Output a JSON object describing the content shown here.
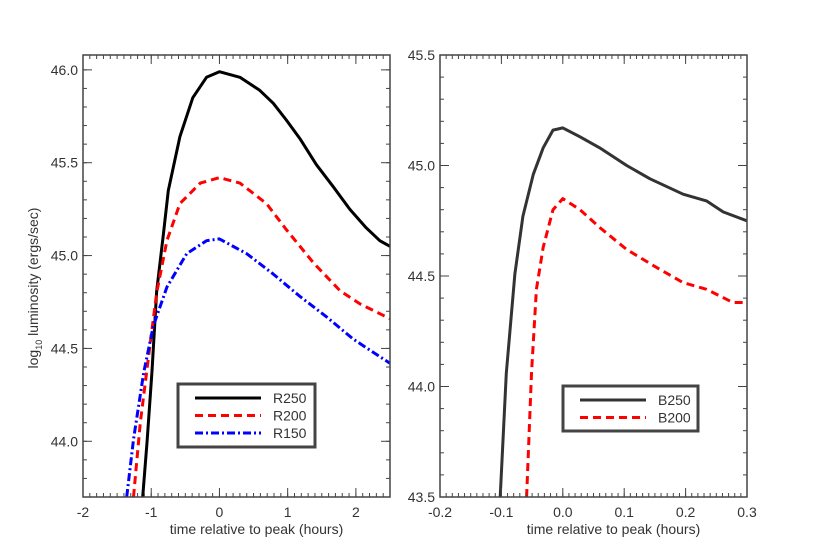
{
  "chart_data": [
    {
      "type": "line",
      "xlabel": "time relative to peak (hours)",
      "ylabel_prefix": "log",
      "ylabel_sub": "10",
      "ylabel_rest": " luminosity (ergs/sec)",
      "xlim": [
        -2,
        2.5
      ],
      "ylim": [
        43.7,
        46.08
      ],
      "xticks": [
        -2,
        -1,
        0,
        1,
        2
      ],
      "xtick_labels": [
        "-2",
        "-1",
        "0",
        "1",
        "2"
      ],
      "yticks": [
        44.0,
        44.5,
        45.0,
        45.5,
        46.0
      ],
      "ytick_labels": [
        "44.0",
        "44.5",
        "45.0",
        "45.5",
        "46.0"
      ],
      "x_minor_step": 0.1,
      "y_minor_step": 0.1,
      "grid": false,
      "legend_position": "lower-center",
      "series": [
        {
          "name": "R250",
          "color": "#000000",
          "style": "solid",
          "x": [
            -1.125,
            -1.06,
            -0.99,
            -0.92,
            -0.82,
            -0.75,
            -0.58,
            -0.39,
            -0.19,
            0,
            0.3,
            0.59,
            0.79,
            0.98,
            1.18,
            1.42,
            1.67,
            1.91,
            2.15,
            2.35,
            2.5
          ],
          "y": [
            43.7,
            44.0,
            44.37,
            44.81,
            45.12,
            45.35,
            45.64,
            45.85,
            45.96,
            45.99,
            45.96,
            45.89,
            45.82,
            45.73,
            45.63,
            45.49,
            45.37,
            45.25,
            45.15,
            45.08,
            45.05
          ]
        },
        {
          "name": "R200",
          "color": "#ff0000",
          "style": "dashed",
          "x": [
            -1.26,
            -1.16,
            -1.01,
            -0.92,
            -0.77,
            -0.58,
            -0.28,
            0,
            0.3,
            0.69,
            0.98,
            1.38,
            1.77,
            2.06,
            2.5
          ],
          "y": [
            43.7,
            44.1,
            44.54,
            44.8,
            45.08,
            45.28,
            45.39,
            45.42,
            45.39,
            45.28,
            45.14,
            44.96,
            44.81,
            44.74,
            44.66
          ]
        },
        {
          "name": "R150",
          "color": "#0000ff",
          "style": "dashdot",
          "x": [
            -1.36,
            -1.26,
            -1.11,
            -0.97,
            -0.77,
            -0.48,
            -0.19,
            0,
            0.4,
            0.79,
            1.18,
            1.57,
            1.96,
            2.25,
            2.5
          ],
          "y": [
            43.7,
            44.01,
            44.37,
            44.62,
            44.83,
            45.01,
            45.08,
            45.09,
            45.01,
            44.9,
            44.78,
            44.67,
            44.55,
            44.48,
            44.42
          ]
        }
      ]
    },
    {
      "type": "line",
      "xlabel": "time relative to peak (hours)",
      "xlim": [
        -0.2,
        0.3
      ],
      "ylim": [
        43.5,
        45.5
      ],
      "xticks": [
        -0.2,
        -0.1,
        0.0,
        0.1,
        0.2,
        0.3
      ],
      "xtick_labels": [
        "-0.2",
        "-0.1",
        "0.0",
        "0.1",
        "0.2",
        "0.3"
      ],
      "yticks": [
        43.5,
        44.0,
        44.5,
        45.0,
        45.5
      ],
      "ytick_labels": [
        "43.5",
        "44.0",
        "44.5",
        "45.0",
        "45.5"
      ],
      "x_minor_step": 0.01,
      "y_minor_step": 0.1,
      "grid": false,
      "legend_position": "lower-center",
      "series": [
        {
          "name": "B250",
          "color": "#333333",
          "style": "solid",
          "x": [
            -0.102,
            -0.092,
            -0.078,
            -0.065,
            -0.048,
            -0.032,
            -0.016,
            0,
            0.028,
            0.06,
            0.104,
            0.142,
            0.196,
            0.234,
            0.261,
            0.3
          ],
          "y": [
            43.5,
            44.06,
            44.51,
            44.77,
            44.96,
            45.08,
            45.16,
            45.17,
            45.13,
            45.08,
            45.0,
            44.94,
            44.87,
            44.84,
            44.79,
            44.75
          ]
        },
        {
          "name": "B200",
          "color": "#ff0000",
          "style": "dashed",
          "x": [
            -0.059,
            -0.051,
            -0.043,
            -0.032,
            -0.016,
            0,
            0.028,
            0.06,
            0.104,
            0.152,
            0.196,
            0.234,
            0.277,
            0.3
          ],
          "y": [
            43.5,
            44.06,
            44.44,
            44.63,
            44.8,
            44.85,
            44.8,
            44.72,
            44.62,
            44.54,
            44.47,
            44.44,
            44.38,
            44.38
          ]
        }
      ]
    }
  ]
}
